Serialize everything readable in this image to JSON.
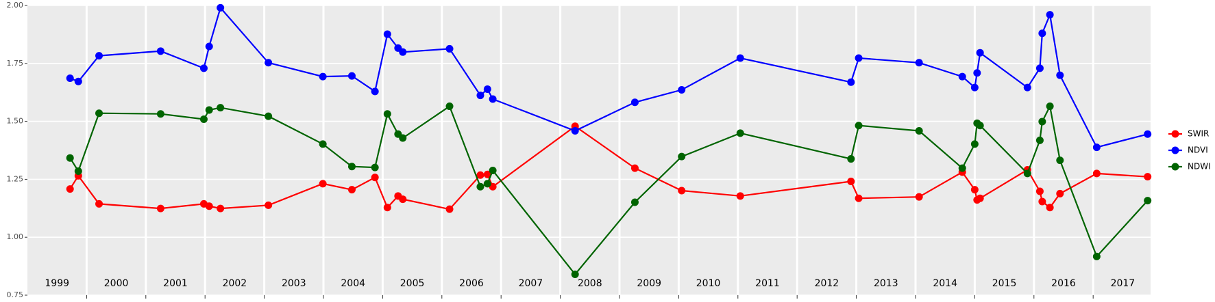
{
  "chart_data": {
    "type": "line",
    "x": [
      1999.72,
      1999.86,
      2000.21,
      2001.25,
      2001.98,
      2002.07,
      2002.26,
      2003.07,
      2003.99,
      2004.48,
      2004.87,
      2005.08,
      2005.26,
      2005.34,
      2006.13,
      2006.65,
      2006.77,
      2006.86,
      2008.25,
      2009.26,
      2010.05,
      2011.04,
      2012.91,
      2013.04,
      2014.06,
      2014.79,
      2015.0,
      2015.04,
      2015.09,
      2015.89,
      2016.1,
      2016.14,
      2016.27,
      2016.44,
      2017.06,
      2017.92
    ],
    "series": [
      {
        "name": "SWIR",
        "color": "#ff0000",
        "values": [
          1.208,
          1.265,
          1.144,
          1.124,
          1.144,
          1.134,
          1.124,
          1.138,
          1.231,
          1.205,
          1.258,
          1.128,
          1.178,
          1.164,
          1.121,
          1.268,
          1.271,
          1.218,
          1.479,
          1.298,
          1.201,
          1.178,
          1.241,
          1.168,
          1.174,
          1.281,
          1.205,
          1.161,
          1.168,
          1.291,
          1.198,
          1.154,
          1.128,
          1.188,
          1.275,
          1.261
        ]
      },
      {
        "name": "NDVI",
        "color": "#0000ff",
        "values": [
          1.686,
          1.672,
          1.783,
          1.803,
          1.729,
          1.823,
          1.99,
          1.753,
          1.693,
          1.696,
          1.629,
          1.876,
          1.816,
          1.799,
          1.813,
          1.612,
          1.639,
          1.596,
          1.459,
          1.582,
          1.636,
          1.773,
          1.669,
          1.773,
          1.753,
          1.693,
          1.646,
          1.709,
          1.796,
          1.646,
          1.729,
          1.88,
          1.96,
          1.699,
          1.388,
          1.445
        ]
      },
      {
        "name": "NDWI",
        "color": "#006400",
        "values": [
          1.342,
          1.285,
          1.535,
          1.532,
          1.509,
          1.549,
          1.559,
          1.522,
          1.402,
          1.305,
          1.301,
          1.532,
          1.445,
          1.428,
          1.565,
          1.218,
          1.231,
          1.288,
          0.84,
          1.151,
          1.348,
          1.449,
          1.338,
          1.482,
          1.459,
          1.298,
          1.402,
          1.492,
          1.482,
          1.275,
          1.418,
          1.499,
          1.565,
          1.332,
          0.917,
          1.158
        ]
      }
    ],
    "xlim": [
      1999.0,
      2017.97
    ],
    "xticks": [
      {
        "value": 1999.5,
        "label": "1999"
      },
      {
        "value": 2000.5,
        "label": "2000"
      },
      {
        "value": 2001.5,
        "label": "2001"
      },
      {
        "value": 2002.5,
        "label": "2002"
      },
      {
        "value": 2003.5,
        "label": "2003"
      },
      {
        "value": 2004.5,
        "label": "2004"
      },
      {
        "value": 2005.5,
        "label": "2005"
      },
      {
        "value": 2006.5,
        "label": "2006"
      },
      {
        "value": 2007.5,
        "label": "2007"
      },
      {
        "value": 2008.5,
        "label": "2008"
      },
      {
        "value": 2009.5,
        "label": "2009"
      },
      {
        "value": 2010.5,
        "label": "2010"
      },
      {
        "value": 2011.5,
        "label": "2011"
      },
      {
        "value": 2012.5,
        "label": "2012"
      },
      {
        "value": 2013.5,
        "label": "2013"
      },
      {
        "value": 2014.5,
        "label": "2014"
      },
      {
        "value": 2015.5,
        "label": "2015"
      },
      {
        "value": 2016.5,
        "label": "2016"
      },
      {
        "value": 2017.5,
        "label": "2017"
      }
    ],
    "xgrid": [
      2000,
      2001,
      2002,
      2003,
      2004,
      2005,
      2006,
      2007,
      2008,
      2009,
      2010,
      2011,
      2012,
      2013,
      2014,
      2015,
      2016,
      2017
    ],
    "ylim": [
      0.75,
      2.0
    ],
    "yticks": [
      {
        "value": 0.75,
        "label": "0.75"
      },
      {
        "value": 1.0,
        "label": "1.00"
      },
      {
        "value": 1.25,
        "label": "1.25"
      },
      {
        "value": 1.5,
        "label": "1.50"
      },
      {
        "value": 1.75,
        "label": "1.75"
      },
      {
        "value": 2.0,
        "label": "2.00"
      }
    ],
    "grid": true,
    "legend": "right"
  }
}
